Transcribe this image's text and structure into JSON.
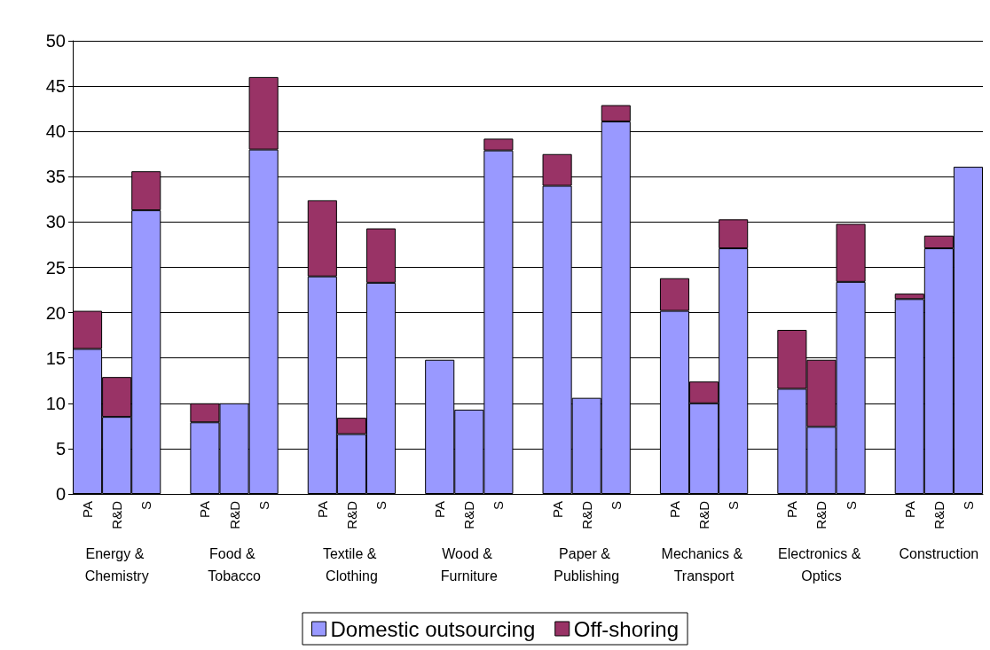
{
  "chart_data": {
    "type": "bar",
    "stacked": true,
    "categories": [
      "PA",
      "R&D",
      "S",
      null,
      "PA",
      "R&D",
      "S",
      null,
      "PA",
      "R&D",
      "S",
      null,
      "PA",
      "R&D",
      "S",
      null,
      "PA",
      "R&D",
      "S",
      null,
      "PA",
      "R&D",
      "S",
      null,
      "PA",
      "R&D",
      "S",
      null,
      "PA",
      "R&D",
      "S"
    ],
    "series": [
      {
        "name": "Domestic outsourcing",
        "color": "#9999ff",
        "values": [
          16,
          8.5,
          31.3,
          null,
          7.9,
          10,
          38,
          null,
          24,
          6.6,
          23.3,
          null,
          14.8,
          9.3,
          37.9,
          null,
          34,
          10.6,
          41.1,
          null,
          20.2,
          10,
          27.1,
          null,
          11.6,
          7.4,
          23.4,
          null,
          21.5,
          27.1,
          36.1
        ]
      },
      {
        "name": "Off-shoring",
        "color": "#993366",
        "values": [
          4.2,
          4.4,
          4.3,
          null,
          2.1,
          null,
          8,
          null,
          8.4,
          1.8,
          6,
          null,
          null,
          null,
          1.3,
          null,
          3.5,
          null,
          1.8,
          null,
          3.6,
          2.4,
          3.2,
          null,
          6.5,
          7.4,
          6.4,
          null,
          0.6,
          1.4,
          null
        ]
      }
    ],
    "annotations": [
      "Energy & Chemistry",
      "Food & Tobacco",
      "Textile & Clothing",
      "Wood & Furniture",
      "Paper & Publishing",
      "Mechanics & Transport",
      "Electronics & Optics",
      "Construction"
    ],
    "ylim": [
      0,
      50
    ],
    "yticks": [
      0,
      5,
      10,
      15,
      20,
      25,
      30,
      35,
      40,
      45,
      50
    ],
    "grid": "y",
    "legend": "bottom"
  }
}
